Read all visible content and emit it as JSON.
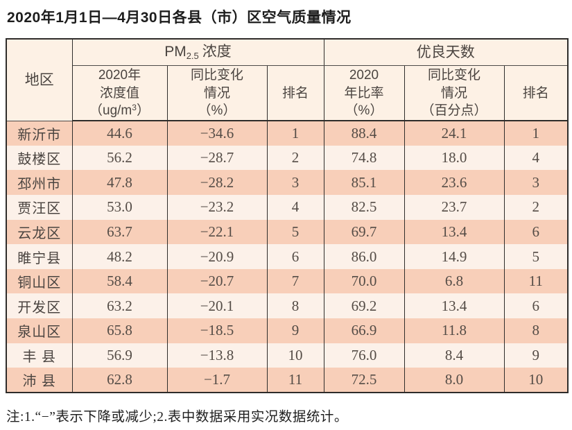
{
  "title": "2020年1月1日—4月30日各县（市）区空气质量情况",
  "table": {
    "region_header": "地区",
    "pm_group": {
      "prefix": "PM",
      "subscript": "2.5",
      "suffix": "浓度"
    },
    "good_days_group": "优良天数",
    "headers": {
      "pm_value_lines": "2020年\n浓度值",
      "pm_value_unit_pre": "（ug/m",
      "pm_value_unit_sup": "3",
      "pm_value_unit_post": "）",
      "pm_change": "同比变化\n情况\n（%）",
      "pm_rank": "排名",
      "days_ratio": "2020\n年比率\n（%）",
      "days_change": "同比变化\n情况\n（百分点）",
      "days_rank": "排名"
    },
    "rows": [
      {
        "region": "新沂市",
        "pm_value": "44.6",
        "pm_change": "−34.6",
        "pm_rank": "1",
        "days_ratio": "88.4",
        "days_change": "24.1",
        "days_rank": "1"
      },
      {
        "region": "鼓楼区",
        "pm_value": "56.2",
        "pm_change": "−28.7",
        "pm_rank": "2",
        "days_ratio": "74.8",
        "days_change": "18.0",
        "days_rank": "4"
      },
      {
        "region": "邳州市",
        "pm_value": "47.8",
        "pm_change": "−28.2",
        "pm_rank": "3",
        "days_ratio": "85.1",
        "days_change": "23.6",
        "days_rank": "3"
      },
      {
        "region": "贾汪区",
        "pm_value": "53.0",
        "pm_change": "−23.2",
        "pm_rank": "4",
        "days_ratio": "82.5",
        "days_change": "23.7",
        "days_rank": "2"
      },
      {
        "region": "云龙区",
        "pm_value": "63.7",
        "pm_change": "−22.1",
        "pm_rank": "5",
        "days_ratio": "69.7",
        "days_change": "13.4",
        "days_rank": "6"
      },
      {
        "region": "睢宁县",
        "pm_value": "48.2",
        "pm_change": "−20.9",
        "pm_rank": "6",
        "days_ratio": "86.0",
        "days_change": "14.9",
        "days_rank": "5"
      },
      {
        "region": "铜山区",
        "pm_value": "58.4",
        "pm_change": "−20.7",
        "pm_rank": "7",
        "days_ratio": "70.0",
        "days_change": "6.8",
        "days_rank": "11"
      },
      {
        "region": "开发区",
        "pm_value": "63.2",
        "pm_change": "−20.1",
        "pm_rank": "8",
        "days_ratio": "69.2",
        "days_change": "13.4",
        "days_rank": "6"
      },
      {
        "region": "泉山区",
        "pm_value": "65.8",
        "pm_change": "−18.5",
        "pm_rank": "9",
        "days_ratio": "66.9",
        "days_change": "11.8",
        "days_rank": "8"
      },
      {
        "region": "丰 县",
        "pm_value": "56.9",
        "pm_change": "−13.8",
        "pm_rank": "10",
        "days_ratio": "76.0",
        "days_change": "8.4",
        "days_rank": "9"
      },
      {
        "region": "沛 县",
        "pm_value": "62.8",
        "pm_change": "−1.7",
        "pm_rank": "11",
        "days_ratio": "72.5",
        "days_change": "8.0",
        "days_rank": "10"
      }
    ]
  },
  "note": "注:1.“−”表示下降或减少;2.表中数据采用实况数据统计。",
  "colors": {
    "row_odd_bg": "#f8cfb9",
    "row_even_bg": "#fcf1e9",
    "header_bg": "#fdf1e5",
    "border": "#2e2c2a",
    "text": "#4a4440"
  }
}
